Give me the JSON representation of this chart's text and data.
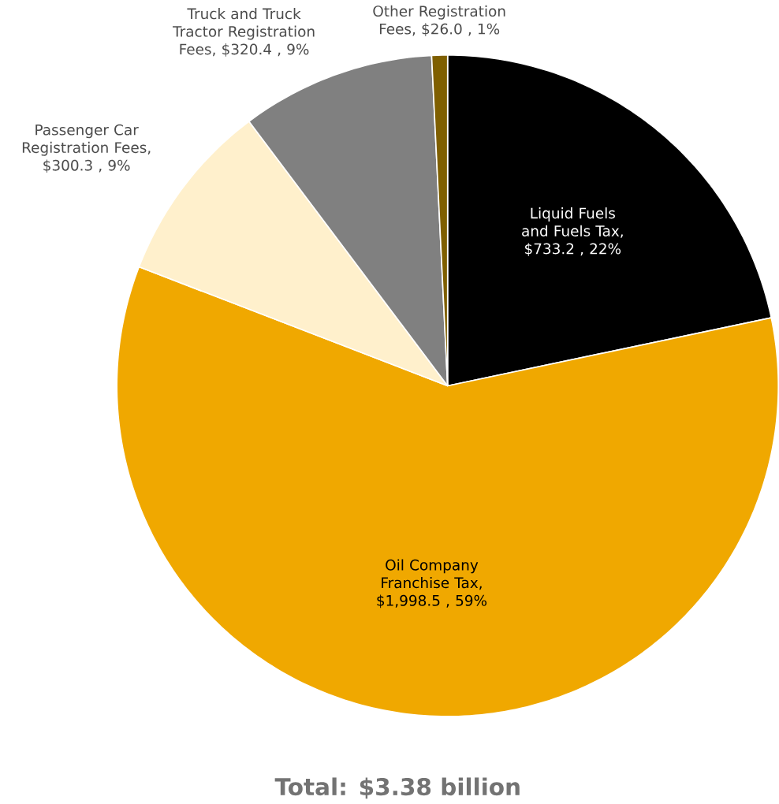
{
  "chart_data": {
    "type": "pie",
    "title": "Total: $3.38 billion",
    "categories": [
      "Liquid Fuels and Fuels Tax",
      "Oil Company Franchise Tax",
      "Passenger Car Registration Fees",
      "Truck and Truck Tractor Registration Fees",
      "Other Registration Fees"
    ],
    "values": [
      733.2,
      1998.5,
      300.3,
      320.4,
      26.0
    ],
    "value_labels": [
      ", $733.2 , 22%",
      ", $1,998.5 , 59%",
      ", $300.3 , 9%",
      ", $320.4 , 9%",
      ", $26.0 , 1%"
    ],
    "colors": [
      "#000000",
      "#f0a800",
      "#fff0cc",
      "#808080",
      "#7f5f00"
    ]
  }
}
